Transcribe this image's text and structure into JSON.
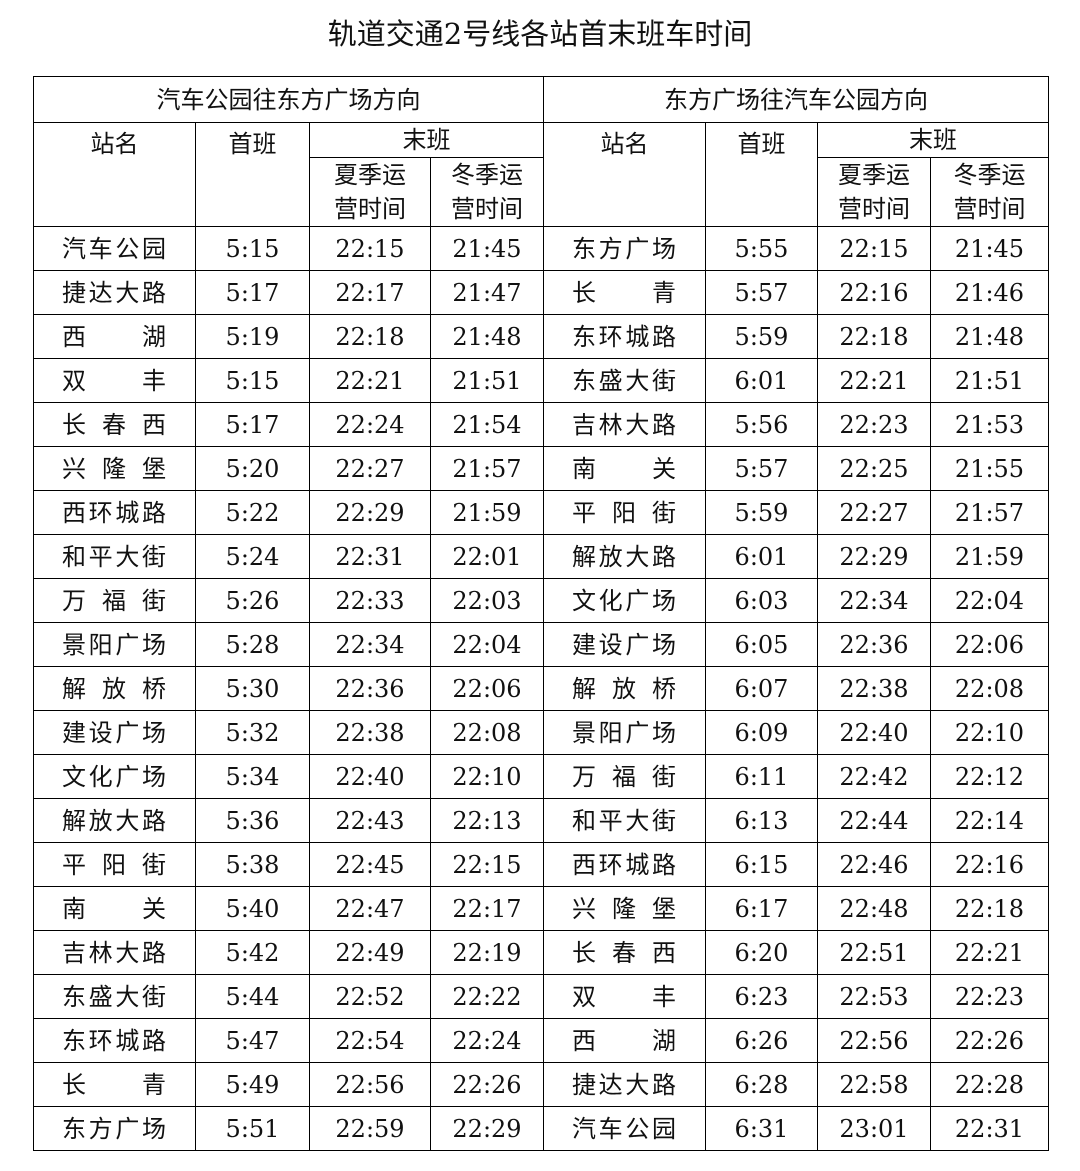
{
  "title": "轨道交通2号线各站首末班车时间",
  "table": {
    "left": {
      "direction": "汽车公园往东方广场方向",
      "station": "站名",
      "first": "首班",
      "last": "末班",
      "summer": "夏季运营时间",
      "winter": "冬季运营时间",
      "rows": [
        [
          "汽车公园",
          "5:15",
          "22:15",
          "21:45"
        ],
        [
          "捷达大路",
          "5:17",
          "22:17",
          "21:47"
        ],
        [
          "西湖",
          "5:19",
          "22:18",
          "21:48"
        ],
        [
          "双丰",
          "5:15",
          "22:21",
          "21:51"
        ],
        [
          "长春西",
          "5:17",
          "22:24",
          "21:54"
        ],
        [
          "兴隆堡",
          "5:20",
          "22:27",
          "21:57"
        ],
        [
          "西环城路",
          "5:22",
          "22:29",
          "21:59"
        ],
        [
          "和平大街",
          "5:24",
          "22:31",
          "22:01"
        ],
        [
          "万福街",
          "5:26",
          "22:33",
          "22:03"
        ],
        [
          "景阳广场",
          "5:28",
          "22:34",
          "22:04"
        ],
        [
          "解放桥",
          "5:30",
          "22:36",
          "22:06"
        ],
        [
          "建设广场",
          "5:32",
          "22:38",
          "22:08"
        ],
        [
          "文化广场",
          "5:34",
          "22:40",
          "22:10"
        ],
        [
          "解放大路",
          "5:36",
          "22:43",
          "22:13"
        ],
        [
          "平阳街",
          "5:38",
          "22:45",
          "22:15"
        ],
        [
          "南关",
          "5:40",
          "22:47",
          "22:17"
        ],
        [
          "吉林大路",
          "5:42",
          "22:49",
          "22:19"
        ],
        [
          "东盛大街",
          "5:44",
          "22:52",
          "22:22"
        ],
        [
          "东环城路",
          "5:47",
          "22:54",
          "22:24"
        ],
        [
          "长青",
          "5:49",
          "22:56",
          "22:26"
        ],
        [
          "东方广场",
          "5:51",
          "22:59",
          "22:29"
        ]
      ]
    },
    "right": {
      "direction": "东方广场往汽车公园方向",
      "station": "站名",
      "first": "首班",
      "last": "末班",
      "summer": "夏季运营时间",
      "winter": "冬季运营时间",
      "rows": [
        [
          "东方广场",
          "5:55",
          "22:15",
          "21:45"
        ],
        [
          "长青",
          "5:57",
          "22:16",
          "21:46"
        ],
        [
          "东环城路",
          "5:59",
          "22:18",
          "21:48"
        ],
        [
          "东盛大街",
          "6:01",
          "22:21",
          "21:51"
        ],
        [
          "吉林大路",
          "5:56",
          "22:23",
          "21:53"
        ],
        [
          "南关",
          "5:57",
          "22:25",
          "21:55"
        ],
        [
          "平阳街",
          "5:59",
          "22:27",
          "21:57"
        ],
        [
          "解放大路",
          "6:01",
          "22:29",
          "21:59"
        ],
        [
          "文化广场",
          "6:03",
          "22:34",
          "22:04"
        ],
        [
          "建设广场",
          "6:05",
          "22:36",
          "22:06"
        ],
        [
          "解放桥",
          "6:07",
          "22:38",
          "22:08"
        ],
        [
          "景阳广场",
          "6:09",
          "22:40",
          "22:10"
        ],
        [
          "万福街",
          "6:11",
          "22:42",
          "22:12"
        ],
        [
          "和平大街",
          "6:13",
          "22:44",
          "22:14"
        ],
        [
          "西环城路",
          "6:15",
          "22:46",
          "22:16"
        ],
        [
          "兴隆堡",
          "6:17",
          "22:48",
          "22:18"
        ],
        [
          "长春西",
          "6:20",
          "22:51",
          "22:21"
        ],
        [
          "双丰",
          "6:23",
          "22:53",
          "22:23"
        ],
        [
          "西湖",
          "6:26",
          "22:56",
          "22:26"
        ],
        [
          "捷达大路",
          "6:28",
          "22:58",
          "22:28"
        ],
        [
          "汽车公园",
          "6:31",
          "23:01",
          "22:31"
        ]
      ]
    }
  }
}
